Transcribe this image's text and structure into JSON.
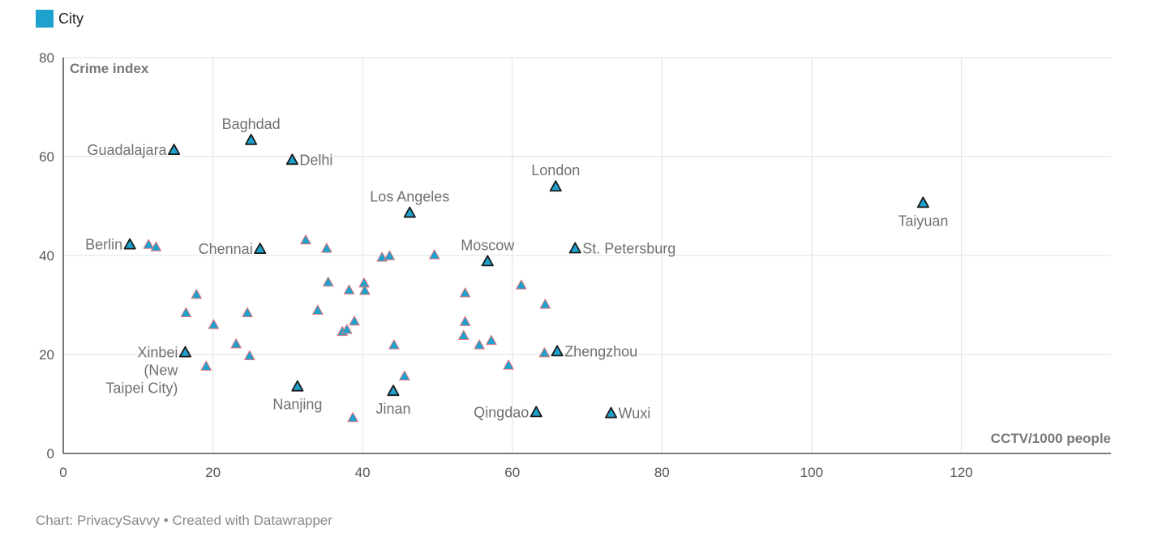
{
  "legend": {
    "label": "City",
    "color": "#1ea1cd"
  },
  "footer": {
    "source_text": "Chart: PrivacySavvy • Created with Datawrapper"
  },
  "colors": {
    "marker_fill": "#1ea1cd",
    "highlight_stroke": "#1a1a1a",
    "regular_stroke": "#e8737a",
    "grid": "#e2e2e2",
    "axis": "#333333",
    "tick_text": "#555555",
    "label_text": "#707070",
    "axis_title": "#777777"
  },
  "chart_data": {
    "type": "scatter",
    "xlabel": "CCTV/1000 people",
    "ylabel": "Crime index",
    "xlim": [
      0,
      140
    ],
    "ylim": [
      0,
      80
    ],
    "x_ticks": [
      0,
      20,
      40,
      60,
      80,
      100,
      120
    ],
    "y_ticks": [
      0,
      20,
      40,
      60,
      80
    ],
    "grid": true,
    "legend_position": "top-left",
    "marker": "triangle",
    "labeled_points": [
      {
        "name": "Guadalajara",
        "x": 14.8,
        "y": 61.3,
        "anchor": "left"
      },
      {
        "name": "Baghdad",
        "x": 25.1,
        "y": 63.3,
        "anchor": "above"
      },
      {
        "name": "Delhi",
        "x": 30.6,
        "y": 59.3,
        "anchor": "right"
      },
      {
        "name": "London",
        "x": 65.8,
        "y": 53.9,
        "anchor": "above"
      },
      {
        "name": "Los Angeles",
        "x": 46.3,
        "y": 48.6,
        "anchor": "above"
      },
      {
        "name": "Taiyuan",
        "x": 114.9,
        "y": 50.6,
        "anchor": "below"
      },
      {
        "name": "Berlin",
        "x": 8.9,
        "y": 42.2,
        "anchor": "left"
      },
      {
        "name": "Chennai",
        "x": 26.3,
        "y": 41.3,
        "anchor": "left"
      },
      {
        "name": "Moscow",
        "x": 56.7,
        "y": 38.8,
        "anchor": "above"
      },
      {
        "name": "St. Petersburg",
        "x": 68.4,
        "y": 41.4,
        "anchor": "right"
      },
      {
        "name": "Xinbei (New Taipei City)",
        "lines": [
          "Xinbei",
          "(New",
          "Taipei City)"
        ],
        "x": 16.3,
        "y": 20.4,
        "anchor": "left"
      },
      {
        "name": "Zhengzhou",
        "x": 66.0,
        "y": 20.6,
        "anchor": "right"
      },
      {
        "name": "Nanjing",
        "x": 31.3,
        "y": 13.5,
        "anchor": "below"
      },
      {
        "name": "Jinan",
        "x": 44.1,
        "y": 12.6,
        "anchor": "below"
      },
      {
        "name": "Qingdao",
        "x": 63.2,
        "y": 8.3,
        "anchor": "left"
      },
      {
        "name": "Wuxi",
        "x": 73.2,
        "y": 8.1,
        "anchor": "right"
      }
    ],
    "other_points": [
      {
        "x": 11.4,
        "y": 42.2
      },
      {
        "x": 12.4,
        "y": 41.7
      },
      {
        "x": 32.4,
        "y": 43.1
      },
      {
        "x": 35.2,
        "y": 41.4
      },
      {
        "x": 42.6,
        "y": 39.6
      },
      {
        "x": 43.6,
        "y": 39.9
      },
      {
        "x": 49.6,
        "y": 40.1
      },
      {
        "x": 17.8,
        "y": 32.1
      },
      {
        "x": 16.4,
        "y": 28.4
      },
      {
        "x": 20.1,
        "y": 26.0
      },
      {
        "x": 24.6,
        "y": 28.4
      },
      {
        "x": 35.4,
        "y": 34.6
      },
      {
        "x": 38.2,
        "y": 33.0
      },
      {
        "x": 40.2,
        "y": 34.4
      },
      {
        "x": 40.3,
        "y": 32.9
      },
      {
        "x": 34.0,
        "y": 28.9
      },
      {
        "x": 37.3,
        "y": 24.6
      },
      {
        "x": 37.9,
        "y": 25.0
      },
      {
        "x": 38.9,
        "y": 26.7
      },
      {
        "x": 23.1,
        "y": 22.1
      },
      {
        "x": 24.9,
        "y": 19.7
      },
      {
        "x": 19.1,
        "y": 17.6
      },
      {
        "x": 44.2,
        "y": 21.9
      },
      {
        "x": 45.6,
        "y": 15.6
      },
      {
        "x": 38.7,
        "y": 7.2
      },
      {
        "x": 53.7,
        "y": 32.4
      },
      {
        "x": 53.7,
        "y": 26.6
      },
      {
        "x": 53.5,
        "y": 23.8
      },
      {
        "x": 55.6,
        "y": 21.9
      },
      {
        "x": 57.2,
        "y": 22.8
      },
      {
        "x": 59.5,
        "y": 17.8
      },
      {
        "x": 61.2,
        "y": 34.0
      },
      {
        "x": 64.4,
        "y": 30.1
      },
      {
        "x": 64.3,
        "y": 20.3
      }
    ]
  }
}
